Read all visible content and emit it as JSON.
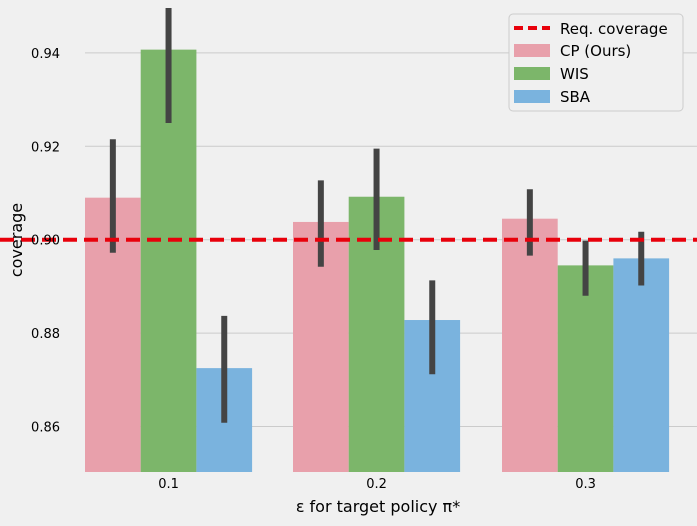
{
  "chart_data": {
    "type": "bar",
    "xlabel": "ε for target policy π*",
    "ylabel": "coverage",
    "categories": [
      "0.1",
      "0.2",
      "0.3"
    ],
    "ylim": [
      0.85,
      0.95
    ],
    "yticks": [
      "0.86",
      "0.88",
      "0.90",
      "0.92",
      "0.94"
    ],
    "grid": true,
    "legend_position": "top-right",
    "series": [
      {
        "name": "CP (Ours)",
        "color": "#e8a0ab",
        "values": [
          0.909,
          0.9038,
          0.9045
        ],
        "err_low": [
          0.8972,
          0.8942,
          0.8966
        ],
        "err_high": [
          0.9215,
          0.9127,
          0.9108
        ]
      },
      {
        "name": "WIS",
        "color": "#7cb66a",
        "values": [
          0.9407,
          0.9092,
          0.8945
        ],
        "err_low": [
          0.925,
          0.8978,
          0.888
        ],
        "err_high": [
          0.95,
          0.9195,
          0.8998
        ]
      },
      {
        "name": "SBA",
        "color": "#7ab3de",
        "values": [
          0.8725,
          0.8828,
          0.896
        ],
        "err_low": [
          0.8608,
          0.8712,
          0.8902
        ],
        "err_high": [
          0.8837,
          0.8913,
          0.9017
        ]
      }
    ],
    "reference_line": {
      "name": "Req. coverage",
      "value": 0.9,
      "color": "#e8000b"
    }
  }
}
